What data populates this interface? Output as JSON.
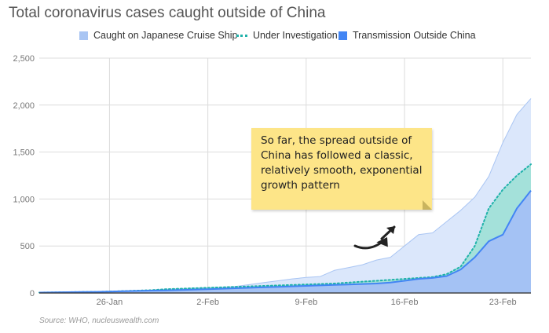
{
  "title": "Total coronavirus cases caught outside of China",
  "source": "Source: WHO, nucleuswealth.com",
  "annotation": "So far, the spread outside of China has followed a classic, relatively smooth, exponential growth pattern",
  "colors": {
    "cruise_fill": "#dbe7fb",
    "cruise_line": "#a9c5f3",
    "investigation_fill": "#9de0d6",
    "investigation_line": "#20b2aa",
    "transmission_fill": "#a4c2f4",
    "transmission_line": "#4285f4",
    "note": "#fde588",
    "arrow": "#222222"
  },
  "chart_data": {
    "type": "area",
    "title": "Total coronavirus cases caught outside of China",
    "xlabel": "",
    "ylabel": "",
    "ylim": [
      0,
      2500
    ],
    "yticks": [
      0,
      500,
      1000,
      1500,
      2000,
      2500
    ],
    "ytick_labels": [
      "0",
      "500",
      "1,000",
      "1,500",
      "2,000",
      "2,500"
    ],
    "xtick_labels": [
      "26-Jan",
      "2-Feb",
      "9-Feb",
      "16-Feb",
      "23-Feb"
    ],
    "x": [
      "21-Jan",
      "22-Jan",
      "23-Jan",
      "24-Jan",
      "25-Jan",
      "26-Jan",
      "27-Jan",
      "28-Jan",
      "29-Jan",
      "30-Jan",
      "31-Jan",
      "1-Feb",
      "2-Feb",
      "3-Feb",
      "4-Feb",
      "5-Feb",
      "6-Feb",
      "7-Feb",
      "8-Feb",
      "9-Feb",
      "10-Feb",
      "11-Feb",
      "12-Feb",
      "13-Feb",
      "14-Feb",
      "15-Feb",
      "16-Feb",
      "17-Feb",
      "18-Feb",
      "19-Feb",
      "20-Feb",
      "21-Feb",
      "22-Feb",
      "23-Feb",
      "24-Feb",
      "25-Feb"
    ],
    "grid": true,
    "legend_position": "top",
    "stacked": false,
    "series": [
      {
        "name": "Caught on Japanese Cruise Ship",
        "style": "area",
        "values": [
          4,
          6,
          8,
          10,
          12,
          15,
          20,
          25,
          30,
          40,
          45,
          50,
          55,
          60,
          70,
          90,
          110,
          130,
          150,
          165,
          175,
          240,
          270,
          300,
          350,
          380,
          500,
          620,
          640,
          760,
          880,
          1020,
          1240,
          1600,
          1900,
          2070
        ]
      },
      {
        "name": "Under Investigation",
        "style": "dotted-area",
        "values": [
          4,
          6,
          8,
          10,
          12,
          15,
          20,
          25,
          30,
          40,
          45,
          50,
          55,
          60,
          65,
          70,
          75,
          80,
          85,
          90,
          95,
          100,
          110,
          120,
          130,
          140,
          150,
          160,
          170,
          200,
          280,
          500,
          900,
          1100,
          1250,
          1370
        ]
      },
      {
        "name": "Transmission Outside China",
        "style": "area",
        "values": [
          4,
          6,
          8,
          10,
          12,
          15,
          18,
          22,
          25,
          28,
          32,
          36,
          40,
          45,
          50,
          55,
          60,
          65,
          70,
          75,
          80,
          85,
          90,
          95,
          100,
          110,
          130,
          150,
          160,
          180,
          250,
          380,
          550,
          620,
          900,
          1090
        ]
      }
    ]
  }
}
